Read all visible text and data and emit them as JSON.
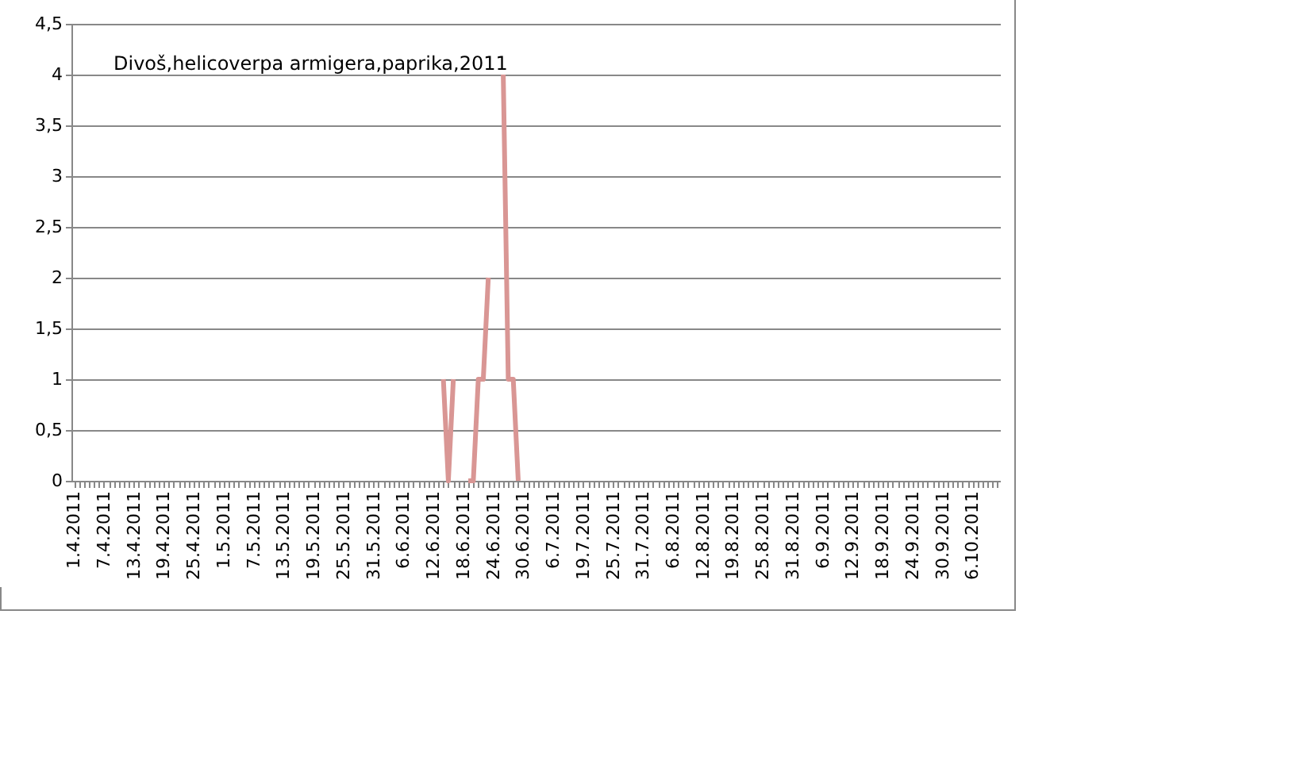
{
  "chart_data": {
    "type": "line",
    "title": "Divoš,helicoverpa armigera,paprika,2011",
    "categories": [
      "1.4.2011",
      null,
      null,
      null,
      null,
      null,
      "7.4.2011",
      null,
      null,
      null,
      null,
      null,
      "13.4.2011",
      null,
      null,
      null,
      null,
      null,
      "19.4.2011",
      null,
      null,
      null,
      null,
      null,
      "25.4.2011",
      null,
      null,
      null,
      null,
      null,
      "1.5.2011",
      null,
      null,
      null,
      null,
      null,
      "7.5.2011",
      null,
      null,
      null,
      null,
      null,
      "13.5.2011",
      null,
      null,
      null,
      null,
      null,
      "19.5.2011",
      null,
      null,
      null,
      null,
      null,
      "25.5.2011",
      null,
      null,
      null,
      null,
      null,
      "31.5.2011",
      null,
      null,
      null,
      null,
      null,
      "6.6.2011",
      null,
      null,
      null,
      null,
      null,
      "12.6.2011",
      null,
      null,
      null,
      null,
      null,
      "18.6.2011",
      null,
      null,
      null,
      null,
      null,
      "24.6.2011",
      null,
      null,
      null,
      null,
      null,
      "30.6.2011",
      null,
      null,
      null,
      null,
      null,
      "6.7.2011",
      null,
      null,
      null,
      null,
      null,
      "19.7.2011",
      null,
      null,
      null,
      null,
      null,
      "25.7.2011",
      null,
      null,
      null,
      null,
      null,
      "31.7.2011",
      null,
      null,
      null,
      null,
      null,
      "6.8.2011",
      null,
      null,
      null,
      null,
      null,
      "12.8.2011",
      null,
      null,
      null,
      null,
      null,
      "19.8.2011",
      null,
      null,
      null,
      null,
      null,
      "25.8.2011",
      null,
      null,
      null,
      null,
      null,
      "31.8.2011",
      null,
      null,
      null,
      null,
      null,
      "6.9.2011",
      null,
      null,
      null,
      null,
      null,
      "12.9.2011",
      null,
      null,
      null,
      null,
      null,
      "18.9.2011",
      null,
      null,
      null,
      null,
      null,
      "24.9.2011",
      null,
      null,
      null,
      null,
      null,
      "30.9.2011",
      null,
      null,
      null,
      null,
      null,
      "6.10.2011",
      null,
      null,
      null,
      null,
      null
    ],
    "series": [
      {
        "color": "#d99694",
        "values": [
          null,
          null,
          null,
          null,
          null,
          null,
          null,
          null,
          null,
          null,
          null,
          null,
          null,
          null,
          null,
          null,
          null,
          null,
          null,
          null,
          null,
          null,
          null,
          null,
          null,
          null,
          null,
          null,
          null,
          null,
          null,
          null,
          null,
          null,
          null,
          null,
          null,
          null,
          null,
          null,
          null,
          null,
          null,
          null,
          null,
          null,
          null,
          null,
          null,
          null,
          null,
          null,
          null,
          null,
          null,
          null,
          null,
          null,
          null,
          null,
          null,
          null,
          null,
          null,
          null,
          null,
          null,
          null,
          null,
          null,
          null,
          null,
          null,
          null,
          1,
          0,
          1,
          null,
          null,
          0,
          0,
          1,
          1,
          2,
          null,
          null,
          4,
          1,
          1,
          0,
          null,
          null,
          null,
          null,
          null,
          null,
          null,
          null,
          null,
          null,
          null,
          null,
          null,
          null,
          null,
          null,
          null,
          null,
          null,
          null,
          null,
          null,
          null,
          null,
          null,
          null,
          null,
          null,
          null,
          null,
          null,
          null,
          null,
          null,
          null,
          null,
          null,
          null,
          null,
          null,
          null,
          null,
          null,
          null,
          null,
          null,
          null,
          null,
          null,
          null,
          null,
          null,
          null,
          null,
          null,
          null,
          null,
          null,
          null,
          null,
          null,
          null,
          null,
          null,
          null,
          null,
          null,
          null,
          null,
          null,
          null,
          null,
          null,
          null,
          null,
          null,
          null,
          null,
          null,
          null,
          null,
          null,
          null,
          null,
          null,
          null,
          null,
          null,
          null,
          null,
          null,
          null,
          null,
          null,
          null,
          null
        ]
      }
    ],
    "ylim": [
      0,
      4.5
    ],
    "yticks": [
      0,
      {
        "value": 0.5,
        "label": "0,5"
      },
      1,
      {
        "value": 1.5,
        "label": "1,5"
      },
      2,
      {
        "value": 2.5,
        "label": "2,5"
      },
      3,
      {
        "value": 3.5,
        "label": "3,5"
      },
      4,
      {
        "value": 4.5,
        "label": "4,5"
      }
    ],
    "grid": "y",
    "line_style": "solid"
  }
}
